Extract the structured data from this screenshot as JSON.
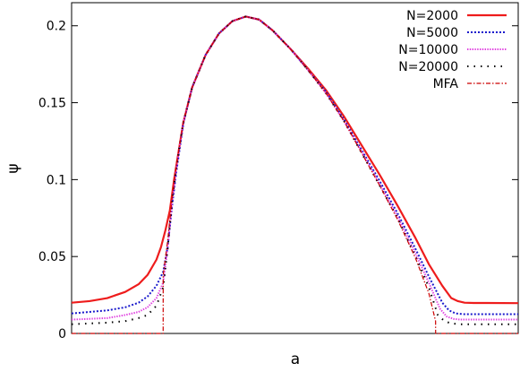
{
  "chart_data": {
    "type": "line",
    "xlabel": "a",
    "ylabel": "ψ",
    "ylim": [
      0,
      0.215
    ],
    "xlim": [
      0,
      1
    ],
    "yticks": [
      "0",
      "0.05",
      "0.1",
      "0.15",
      "0.2"
    ],
    "ytick_values": [
      0,
      0.05,
      0.1,
      0.15,
      0.2
    ],
    "grid": false,
    "legend": "top-right",
    "series": [
      {
        "name": "N=2000",
        "color": "#ee1c1c",
        "dash": "solid",
        "x": [
          0.0,
          0.04,
          0.08,
          0.12,
          0.15,
          0.17,
          0.19,
          0.2,
          0.21,
          0.22,
          0.23,
          0.25,
          0.27,
          0.3,
          0.33,
          0.36,
          0.39,
          0.42,
          0.45,
          0.49,
          0.53,
          0.57,
          0.61,
          0.65,
          0.69,
          0.73,
          0.77,
          0.8,
          0.83,
          0.85,
          0.865,
          0.88,
          0.9,
          0.93,
          1.0
        ],
        "y": [
          0.02,
          0.021,
          0.023,
          0.027,
          0.032,
          0.038,
          0.048,
          0.056,
          0.067,
          0.08,
          0.101,
          0.137,
          0.16,
          0.181,
          0.195,
          0.203,
          0.206,
          0.204,
          0.197,
          0.185,
          0.172,
          0.158,
          0.141,
          0.122,
          0.103,
          0.083,
          0.062,
          0.045,
          0.031,
          0.023,
          0.021,
          0.02,
          0.0198,
          0.0198,
          0.0197
        ]
      },
      {
        "name": "N=5000",
        "color": "#1a1acc",
        "dash": "dotted",
        "x": [
          0.0,
          0.04,
          0.08,
          0.12,
          0.15,
          0.17,
          0.19,
          0.205,
          0.215,
          0.225,
          0.235,
          0.25,
          0.27,
          0.3,
          0.33,
          0.36,
          0.39,
          0.42,
          0.45,
          0.49,
          0.53,
          0.57,
          0.61,
          0.65,
          0.69,
          0.73,
          0.77,
          0.8,
          0.83,
          0.845,
          0.86,
          0.88,
          0.9,
          0.93,
          1.0
        ],
        "y": [
          0.013,
          0.014,
          0.015,
          0.017,
          0.02,
          0.024,
          0.031,
          0.04,
          0.056,
          0.083,
          0.106,
          0.136,
          0.16,
          0.181,
          0.195,
          0.203,
          0.206,
          0.204,
          0.197,
          0.185,
          0.171,
          0.157,
          0.139,
          0.119,
          0.099,
          0.078,
          0.055,
          0.037,
          0.02,
          0.015,
          0.013,
          0.0125,
          0.0125,
          0.0125,
          0.0125
        ]
      },
      {
        "name": "N=10000",
        "color": "#e040e0",
        "dash": "dense",
        "x": [
          0.0,
          0.04,
          0.08,
          0.12,
          0.15,
          0.17,
          0.19,
          0.205,
          0.215,
          0.225,
          0.235,
          0.25,
          0.27,
          0.3,
          0.33,
          0.36,
          0.39,
          0.42,
          0.45,
          0.49,
          0.53,
          0.57,
          0.61,
          0.65,
          0.69,
          0.73,
          0.77,
          0.8,
          0.825,
          0.84,
          0.855,
          0.87,
          0.9,
          0.93,
          1.0
        ],
        "y": [
          0.009,
          0.0095,
          0.01,
          0.012,
          0.014,
          0.017,
          0.023,
          0.033,
          0.055,
          0.085,
          0.108,
          0.137,
          0.16,
          0.181,
          0.195,
          0.203,
          0.206,
          0.204,
          0.197,
          0.185,
          0.171,
          0.156,
          0.138,
          0.118,
          0.097,
          0.076,
          0.052,
          0.033,
          0.016,
          0.011,
          0.0095,
          0.009,
          0.009,
          0.009,
          0.009
        ]
      },
      {
        "name": "N=20000",
        "color": "#000000",
        "dash": "sparse",
        "x": [
          0.0,
          0.04,
          0.08,
          0.12,
          0.15,
          0.17,
          0.19,
          0.205,
          0.215,
          0.225,
          0.235,
          0.25,
          0.27,
          0.3,
          0.33,
          0.36,
          0.39,
          0.42,
          0.45,
          0.49,
          0.53,
          0.57,
          0.61,
          0.65,
          0.69,
          0.73,
          0.77,
          0.8,
          0.82,
          0.835,
          0.85,
          0.87,
          0.9,
          0.93,
          1.0
        ],
        "y": [
          0.006,
          0.0065,
          0.007,
          0.008,
          0.01,
          0.012,
          0.018,
          0.03,
          0.055,
          0.086,
          0.109,
          0.137,
          0.16,
          0.181,
          0.195,
          0.203,
          0.206,
          0.204,
          0.197,
          0.185,
          0.171,
          0.156,
          0.138,
          0.117,
          0.096,
          0.075,
          0.05,
          0.03,
          0.012,
          0.008,
          0.0065,
          0.006,
          0.006,
          0.006,
          0.006
        ]
      },
      {
        "name": "MFA",
        "color": "#cc0000",
        "dash": "dashdot",
        "x": [
          0.0,
          0.205,
          0.2051,
          0.215,
          0.225,
          0.235,
          0.25,
          0.27,
          0.3,
          0.33,
          0.36,
          0.39,
          0.42,
          0.45,
          0.49,
          0.53,
          0.57,
          0.61,
          0.65,
          0.69,
          0.73,
          0.77,
          0.8,
          0.815,
          0.8151,
          1.0
        ],
        "y": [
          0.0,
          0.0,
          0.038,
          0.06,
          0.088,
          0.11,
          0.137,
          0.16,
          0.181,
          0.195,
          0.203,
          0.206,
          0.204,
          0.197,
          0.185,
          0.171,
          0.156,
          0.138,
          0.117,
          0.096,
          0.074,
          0.049,
          0.026,
          0.008,
          0.0,
          0.0
        ]
      }
    ]
  }
}
